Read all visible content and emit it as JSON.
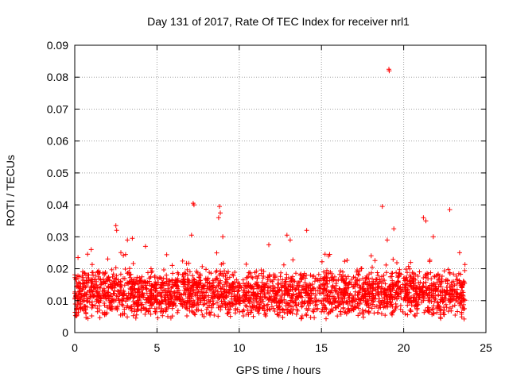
{
  "chart_data": {
    "type": "scatter",
    "title": "Day 131 of 2017, Rate Of TEC Index for receiver nrl1",
    "xlabel": "GPS time / hours",
    "ylabel": "ROTI / TECUs",
    "xlim": [
      0,
      25
    ],
    "ylim": [
      0,
      0.09
    ],
    "x_ticks": [
      0,
      5,
      10,
      15,
      20,
      25
    ],
    "x_tick_labels": [
      "0",
      "5",
      "10",
      "15",
      "20",
      "25"
    ],
    "y_ticks": [
      0,
      0.01,
      0.02,
      0.03,
      0.04,
      0.05,
      0.06,
      0.07,
      0.08,
      0.09
    ],
    "y_tick_labels": [
      "0",
      "0.01",
      "0.02",
      "0.03",
      "0.04",
      "0.05",
      "0.06",
      "0.07",
      "0.08",
      "0.09"
    ],
    "grid": true,
    "marker": "+",
    "color": "#ff0000",
    "series": [
      {
        "name": "ROTI",
        "data_range": {
          "x_start": 0.0,
          "x_end": 23.75,
          "y_typical_min": 0.004,
          "y_typical_max": 0.02
        },
        "notable_points": [
          {
            "x": 2.5,
            "y": 0.0335
          },
          {
            "x": 2.55,
            "y": 0.032
          },
          {
            "x": 3.2,
            "y": 0.029
          },
          {
            "x": 3.5,
            "y": 0.0295
          },
          {
            "x": 4.3,
            "y": 0.027
          },
          {
            "x": 7.2,
            "y": 0.0405
          },
          {
            "x": 7.25,
            "y": 0.04
          },
          {
            "x": 7.1,
            "y": 0.0305
          },
          {
            "x": 8.8,
            "y": 0.0395
          },
          {
            "x": 8.85,
            "y": 0.0375
          },
          {
            "x": 8.75,
            "y": 0.036
          },
          {
            "x": 9.0,
            "y": 0.03
          },
          {
            "x": 12.9,
            "y": 0.0305
          },
          {
            "x": 13.1,
            "y": 0.029
          },
          {
            "x": 14.1,
            "y": 0.032
          },
          {
            "x": 18.7,
            "y": 0.0395
          },
          {
            "x": 19.1,
            "y": 0.0825
          },
          {
            "x": 19.12,
            "y": 0.082
          },
          {
            "x": 19.4,
            "y": 0.0325
          },
          {
            "x": 19.0,
            "y": 0.029
          },
          {
            "x": 21.2,
            "y": 0.036
          },
          {
            "x": 21.35,
            "y": 0.035
          },
          {
            "x": 21.8,
            "y": 0.03
          },
          {
            "x": 22.8,
            "y": 0.0385
          },
          {
            "x": 23.4,
            "y": 0.025
          },
          {
            "x": 1.0,
            "y": 0.026
          },
          {
            "x": 0.2,
            "y": 0.0235
          },
          {
            "x": 11.8,
            "y": 0.0275
          },
          {
            "x": 15.5,
            "y": 0.0245
          }
        ]
      }
    ]
  }
}
